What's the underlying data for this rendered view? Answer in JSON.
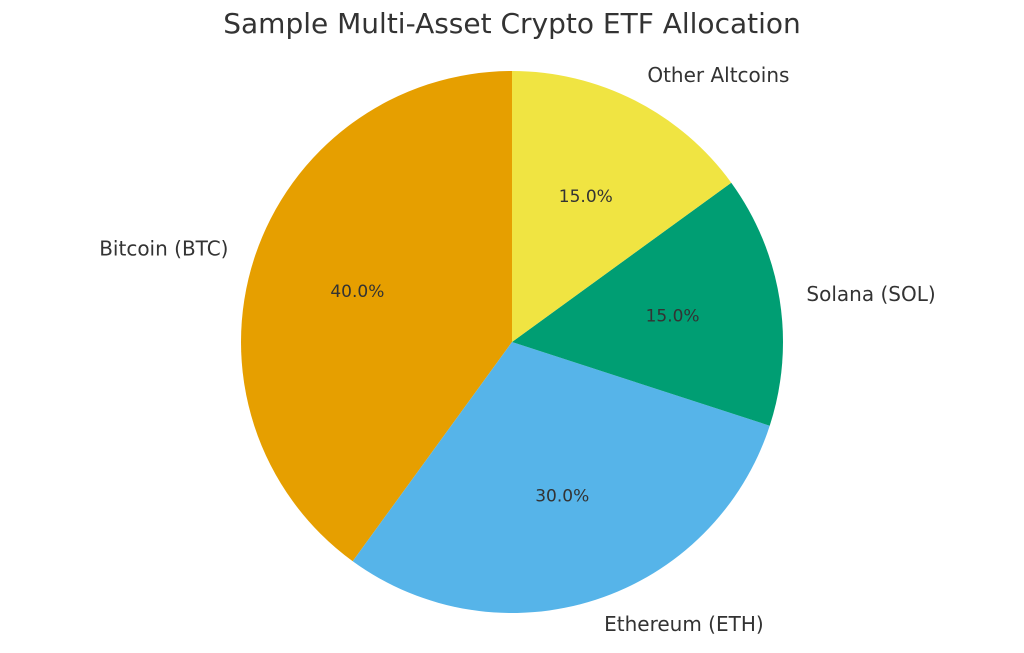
{
  "chart_data": {
    "type": "pie",
    "title": "Sample Multi-Asset Crypto ETF Allocation",
    "categories": [
      "Bitcoin (BTC)",
      "Ethereum (ETH)",
      "Solana (SOL)",
      "Other Altcoins"
    ],
    "values": [
      40,
      30,
      15,
      15
    ],
    "value_labels": [
      "40.0%",
      "30.0%",
      "15.0%",
      "15.0%"
    ],
    "colors": [
      "#e69f00",
      "#56b4e9",
      "#009e73",
      "#f0e442"
    ]
  }
}
